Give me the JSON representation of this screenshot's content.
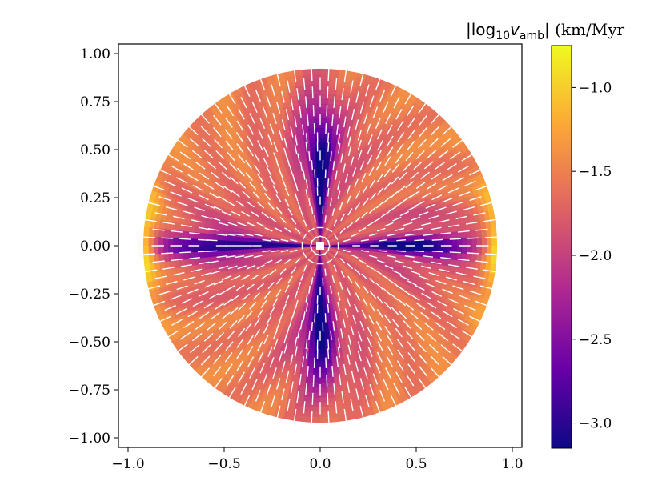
{
  "chart_data": {
    "type": "heatmap",
    "subtype": "polar-disk-with-vector-field",
    "title": "",
    "xlabel": "",
    "ylabel": "",
    "xlim": [
      -1.05,
      1.05
    ],
    "ylim": [
      -1.05,
      1.05
    ],
    "disk_radius": 0.92,
    "xticks": [
      -1.0,
      -0.5,
      0.0,
      0.5,
      1.0
    ],
    "xtick_labels": [
      "−1.0",
      "−0.5",
      "0.0",
      "0.5",
      "1.0"
    ],
    "yticks": [
      1.0,
      0.75,
      0.5,
      0.25,
      0.0,
      -0.25,
      -0.5,
      -0.75,
      -1.0
    ],
    "ytick_labels": [
      "1.00",
      "0.75",
      "0.50",
      "0.25",
      "0.00",
      "−0.25",
      "−0.50",
      "−0.75",
      "−1.00"
    ],
    "colorbar": {
      "label_prefix": "|log",
      "label_sub": "10",
      "label_var": "v",
      "label_var_sub": "amb",
      "label_suffix": "| (km/Myr",
      "range": [
        -3.15,
        -0.75
      ],
      "ticks": [
        -1.0,
        -1.5,
        -2.0,
        -2.5,
        -3.0
      ],
      "tick_labels": [
        "−1.0",
        "−1.5",
        "−2.0",
        "−2.5",
        "−3.0"
      ],
      "colormap": "plasma",
      "colors": [
        "#0d0887",
        "#6a00a8",
        "#b12a90",
        "#e16462",
        "#fca636",
        "#f0f921"
      ]
    },
    "features": {
      "equatorial_band_value": -2.7,
      "polar_axis_value": -2.9,
      "outer_rim_value": -1.5,
      "limb_value_at_equator": -0.9,
      "quiver_color": "#ffffff"
    }
  }
}
